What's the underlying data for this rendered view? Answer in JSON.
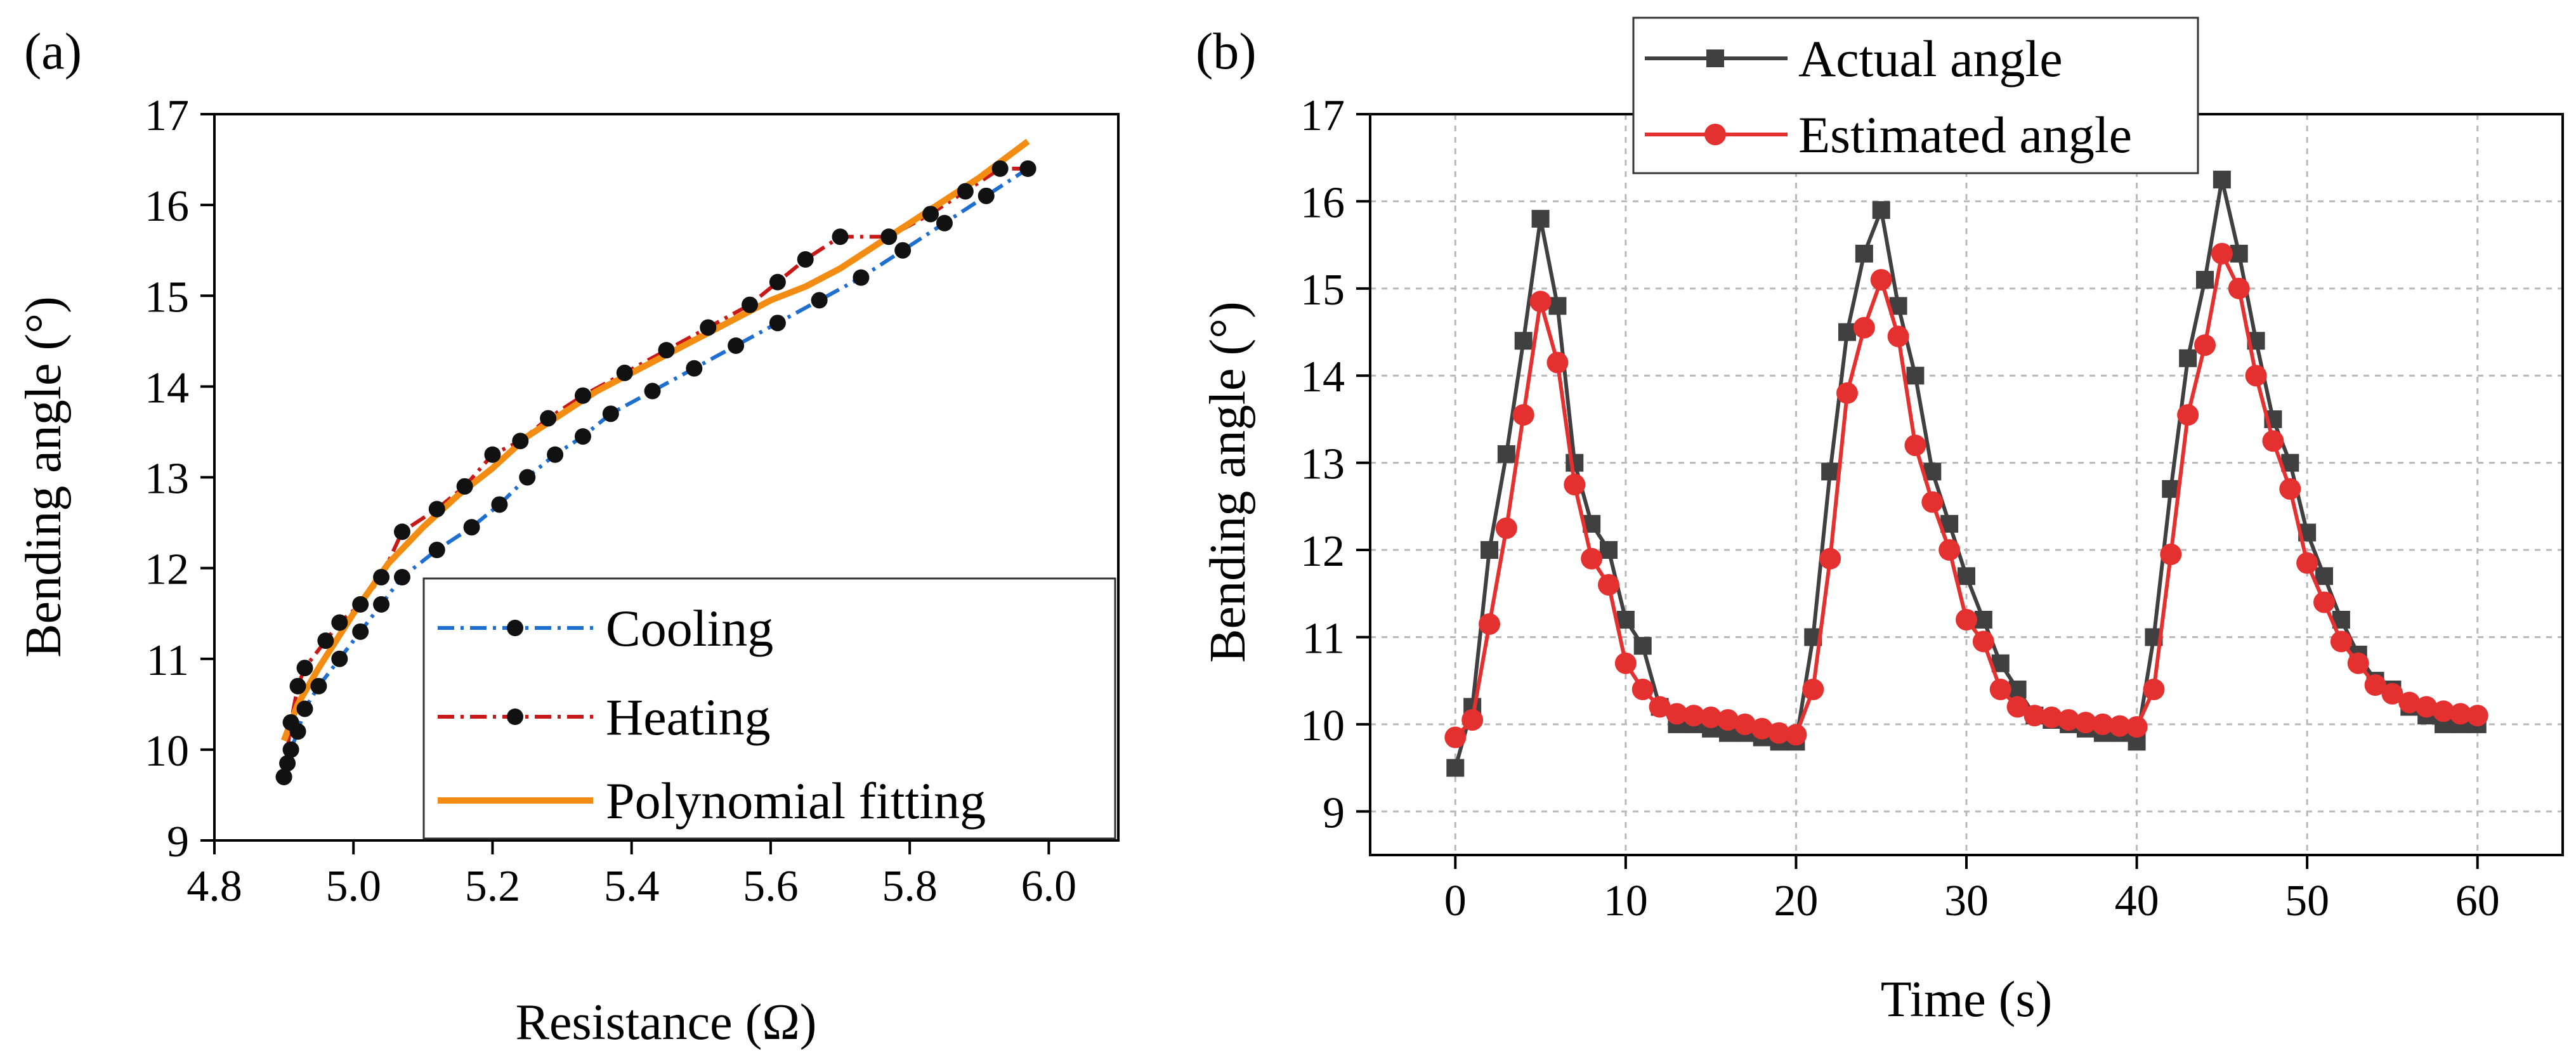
{
  "colors": {
    "cooling": "#1f6fd1",
    "heating": "#c81818",
    "fit": "#f28c12",
    "actual": "#404040",
    "estimated": "#e53030",
    "marker_dark": "#111111"
  },
  "chart_data": [
    {
      "id": "a",
      "type": "line",
      "panel_label": "(a)",
      "xlabel": "Resistance (Ω)",
      "ylabel": "Bending angle (°)",
      "xlim": [
        4.8,
        6.1
      ],
      "ylim": [
        9,
        17
      ],
      "xticks": [
        4.8,
        5.0,
        5.2,
        5.4,
        5.6,
        5.8,
        6.0
      ],
      "xtick_labels": [
        "4.8",
        "5.0",
        "5.2",
        "5.4",
        "5.6",
        "5.8",
        "6.0"
      ],
      "yticks": [
        9,
        10,
        11,
        12,
        13,
        14,
        15,
        16,
        17
      ],
      "ytick_labels": [
        "9",
        "10",
        "11",
        "12",
        "13",
        "14",
        "15",
        "16",
        "17"
      ],
      "legend": {
        "position": "bottom-right",
        "entries": [
          "Cooling",
          "Heating",
          "Polynomial fitting"
        ]
      },
      "series": [
        {
          "name": "Cooling",
          "style": "dashdot-dots",
          "x": [
            4.9,
            4.905,
            4.91,
            4.92,
            4.93,
            4.95,
            4.98,
            5.01,
            5.04,
            5.07,
            5.12,
            5.17,
            5.21,
            5.25,
            5.29,
            5.33,
            5.37,
            5.43,
            5.49,
            5.55,
            5.61,
            5.67,
            5.73,
            5.79,
            5.85,
            5.91,
            5.97
          ],
          "y": [
            9.7,
            9.85,
            10.0,
            10.2,
            10.45,
            10.7,
            11.0,
            11.3,
            11.6,
            11.9,
            12.2,
            12.45,
            12.7,
            13.0,
            13.25,
            13.45,
            13.7,
            13.95,
            14.2,
            14.45,
            14.7,
            14.95,
            15.2,
            15.5,
            15.8,
            16.1,
            16.4
          ]
        },
        {
          "name": "Heating",
          "style": "dashdot-dots",
          "x": [
            4.9,
            4.91,
            4.92,
            4.93,
            4.96,
            4.98,
            5.01,
            5.04,
            5.07,
            5.12,
            5.16,
            5.2,
            5.24,
            5.28,
            5.33,
            5.39,
            5.45,
            5.51,
            5.57,
            5.61,
            5.65,
            5.7,
            5.77,
            5.83,
            5.88,
            5.93,
            5.97
          ],
          "y": [
            9.7,
            10.3,
            10.7,
            10.9,
            11.2,
            11.4,
            11.6,
            11.9,
            12.4,
            12.65,
            12.9,
            13.25,
            13.4,
            13.65,
            13.9,
            14.15,
            14.4,
            14.65,
            14.9,
            15.15,
            15.4,
            15.65,
            15.65,
            15.9,
            16.15,
            16.4,
            16.4
          ]
        },
        {
          "name": "Polynomial fitting",
          "style": "solid",
          "x": [
            4.9,
            4.92,
            4.95,
            5.0,
            5.05,
            5.1,
            5.15,
            5.2,
            5.25,
            5.3,
            5.35,
            5.4,
            5.45,
            5.5,
            5.55,
            5.6,
            5.65,
            5.7,
            5.75,
            5.8,
            5.85,
            5.9,
            5.97
          ],
          "y": [
            10.1,
            10.5,
            10.9,
            11.5,
            12.05,
            12.45,
            12.8,
            13.1,
            13.45,
            13.7,
            13.95,
            14.15,
            14.35,
            14.55,
            14.75,
            14.95,
            15.1,
            15.3,
            15.55,
            15.8,
            16.05,
            16.3,
            16.7
          ]
        }
      ]
    },
    {
      "id": "b",
      "type": "line",
      "panel_label": "(b)",
      "xlabel": "Time (s)",
      "ylabel": "Bending angle (°)",
      "xlim": [
        -5,
        65
      ],
      "ylim": [
        8.5,
        17
      ],
      "xticks": [
        0,
        10,
        20,
        30,
        40,
        50,
        60
      ],
      "xtick_labels": [
        "0",
        "10",
        "20",
        "30",
        "40",
        "50",
        "60"
      ],
      "yticks": [
        9,
        10,
        11,
        12,
        13,
        14,
        15,
        16,
        17
      ],
      "ytick_labels": [
        "9",
        "10",
        "11",
        "12",
        "13",
        "14",
        "15",
        "16",
        "17"
      ],
      "legend": {
        "position": "top",
        "entries": [
          "Actual angle",
          "Estimated angle"
        ]
      },
      "series": [
        {
          "name": "Actual angle",
          "marker": "square",
          "x": [
            0,
            1,
            2,
            3,
            4,
            5,
            6,
            7,
            8,
            9,
            10,
            11,
            12,
            13,
            14,
            15,
            16,
            17,
            18,
            19,
            20,
            21,
            22,
            23,
            24,
            25,
            26,
            27,
            28,
            29,
            30,
            31,
            32,
            33,
            34,
            35,
            36,
            37,
            38,
            39,
            40,
            41,
            42,
            43,
            44,
            45,
            46,
            47,
            48,
            49,
            50,
            51,
            52,
            53,
            54,
            55,
            56,
            57,
            58,
            59,
            60
          ],
          "y": [
            9.5,
            10.2,
            12.0,
            13.1,
            14.4,
            15.8,
            14.8,
            13.0,
            12.3,
            12.0,
            11.2,
            10.9,
            10.2,
            10.0,
            10.0,
            9.95,
            9.9,
            9.9,
            9.85,
            9.8,
            9.8,
            11.0,
            12.9,
            14.5,
            15.4,
            15.9,
            14.8,
            14.0,
            12.9,
            12.3,
            11.7,
            11.2,
            10.7,
            10.4,
            10.1,
            10.05,
            10.0,
            9.95,
            9.9,
            9.9,
            9.8,
            11.0,
            12.7,
            14.2,
            15.1,
            16.25,
            15.4,
            14.4,
            13.5,
            13.0,
            12.2,
            11.7,
            11.2,
            10.8,
            10.5,
            10.4,
            10.2,
            10.1,
            10.0,
            10.0,
            10.0
          ]
        },
        {
          "name": "Estimated angle",
          "marker": "circle",
          "x": [
            0,
            1,
            2,
            3,
            4,
            5,
            6,
            7,
            8,
            9,
            10,
            11,
            12,
            13,
            14,
            15,
            16,
            17,
            18,
            19,
            20,
            21,
            22,
            23,
            24,
            25,
            26,
            27,
            28,
            29,
            30,
            31,
            32,
            33,
            34,
            35,
            36,
            37,
            38,
            39,
            40,
            41,
            42,
            43,
            44,
            45,
            46,
            47,
            48,
            49,
            50,
            51,
            52,
            53,
            54,
            55,
            56,
            57,
            58,
            59,
            60
          ],
          "y": [
            9.85,
            10.05,
            11.15,
            12.25,
            13.55,
            14.85,
            14.15,
            12.75,
            11.9,
            11.6,
            10.7,
            10.4,
            10.2,
            10.12,
            10.1,
            10.08,
            10.05,
            10.0,
            9.95,
            9.9,
            9.88,
            10.4,
            11.9,
            13.8,
            14.55,
            15.1,
            14.45,
            13.2,
            12.55,
            12.0,
            11.2,
            10.95,
            10.4,
            10.2,
            10.1,
            10.08,
            10.05,
            10.02,
            10.0,
            9.98,
            9.97,
            10.4,
            11.95,
            13.55,
            14.35,
            15.4,
            15.0,
            14.0,
            13.25,
            12.7,
            11.85,
            11.4,
            10.95,
            10.7,
            10.45,
            10.35,
            10.25,
            10.2,
            10.15,
            10.12,
            10.1
          ]
        }
      ]
    }
  ]
}
